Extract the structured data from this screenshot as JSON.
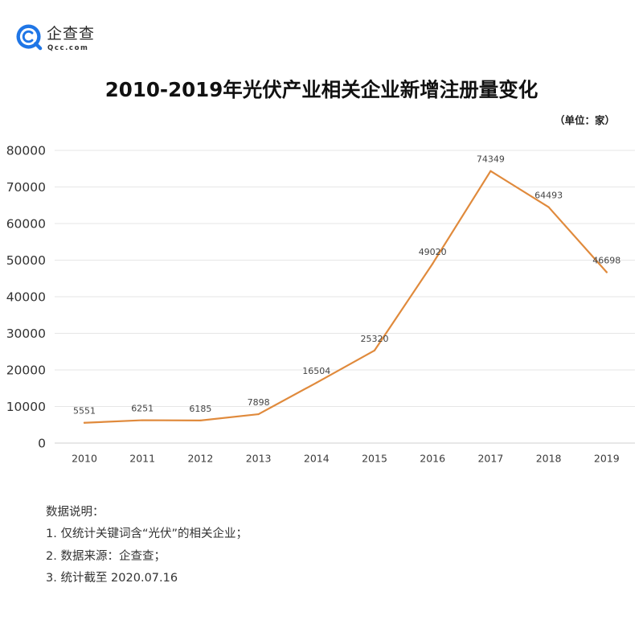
{
  "logo": {
    "name": "企查查",
    "domain": "Qcc.com",
    "brand_color": "#1F76E6"
  },
  "chart_data": {
    "type": "line",
    "title": "2010-2019年光伏产业相关企业新增注册量变化",
    "unit": "（单位：家）",
    "categories": [
      "2010",
      "2011",
      "2012",
      "2013",
      "2014",
      "2015",
      "2016",
      "2017",
      "2018",
      "2019"
    ],
    "series": [
      {
        "values": [
          5551,
          6251,
          6185,
          7898,
          16504,
          25320,
          49020,
          74349,
          64493,
          46698
        ],
        "color": "#E08A3C"
      }
    ],
    "ylim": [
      0,
      80000
    ],
    "yticks": [
      0,
      10000,
      20000,
      30000,
      40000,
      50000,
      60000,
      70000,
      80000
    ],
    "grid": true,
    "data_labels": true
  },
  "notes": {
    "heading": "数据说明：",
    "items": [
      "1. 仅统计关键词含“光伏”的相关企业；",
      "2. 数据来源：企查查；",
      "3. 统计截至 2020.07.16"
    ]
  }
}
